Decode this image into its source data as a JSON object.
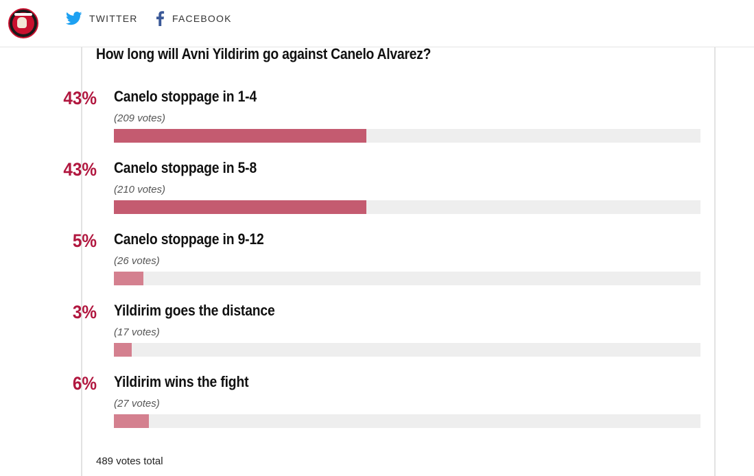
{
  "header": {
    "logo_name": "site-logo",
    "twitter_label": "TWITTER",
    "facebook_label": "FACEBOOK"
  },
  "poll": {
    "question": "How long will Avni Yildirim go against Canelo Alvarez?",
    "total_label": "489 votes total",
    "colors": {
      "major_bar": "#c45b70",
      "minor_bar": "#d4808f",
      "track": "#eeeeee",
      "percent": "#b1173f"
    },
    "options": [
      {
        "percent": "43%",
        "label": "Canelo stoppage in 1-4",
        "votes": "(209 votes)",
        "share": 0.43,
        "major": true
      },
      {
        "percent": "43%",
        "label": "Canelo stoppage in 5-8",
        "votes": "(210 votes)",
        "share": 0.43,
        "major": true
      },
      {
        "percent": "5%",
        "label": "Canelo stoppage in 9-12",
        "votes": "(26 votes)",
        "share": 0.05,
        "major": false
      },
      {
        "percent": "3%",
        "label": "Yildirim goes the distance",
        "votes": "(17 votes)",
        "share": 0.03,
        "major": false
      },
      {
        "percent": "6%",
        "label": "Yildirim wins the fight",
        "votes": "(27 votes)",
        "share": 0.06,
        "major": false
      }
    ]
  }
}
